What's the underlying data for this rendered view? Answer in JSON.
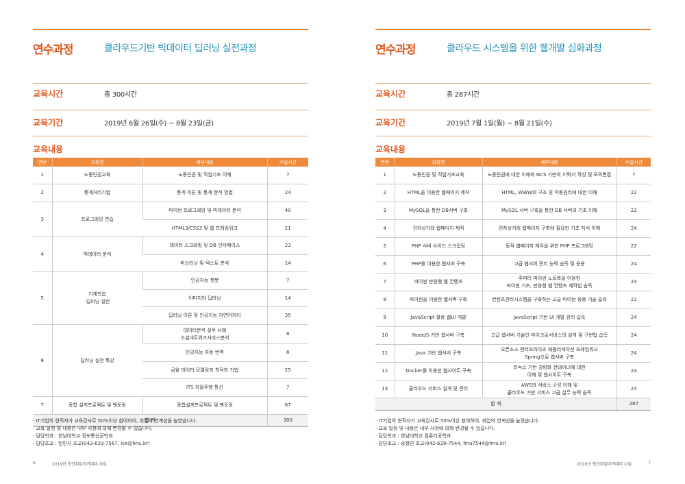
{
  "labels": {
    "course_label": "연수과정",
    "hours_label": "교육시간",
    "period_label": "교육기간",
    "content_label": "교육내용"
  },
  "table_headers": [
    "연번",
    "과목명",
    "세부내용",
    "수업시간"
  ],
  "left": {
    "course_name": "클라우드기반 빅데이터 딥러닝 실전과정",
    "hours": "총 300시간",
    "period": "2019년 6월 26일(수) ~ 8월 23일(금)",
    "groups": [
      {
        "no": "1",
        "subject": "노동인권교육",
        "details": [
          {
            "content": "노동인권 및 직업기초 이해",
            "hours": "7"
          }
        ]
      },
      {
        "no": "2",
        "subject": "통계처리기법",
        "details": [
          {
            "content": "통계 이론 및 통계 분석 방법",
            "hours": "24"
          }
        ]
      },
      {
        "no": "3",
        "subject": "프로그래밍 연습",
        "details": [
          {
            "content": "파이썬 프로그래밍 및 빅데이터 분석",
            "hours": "40"
          },
          {
            "content": "HTML3/CSS3 및 웹 프레임워크",
            "hours": "21"
          }
        ]
      },
      {
        "no": "4",
        "subject": "빅데이터 분석",
        "details": [
          {
            "content": "데이터 스크래핑 및 DB 인터페이스",
            "hours": "23"
          },
          {
            "content": "머신러닝 및 텍스트 분석",
            "hours": "14"
          }
        ]
      },
      {
        "no": "5",
        "subject": "기계학습\n·딥러닝 실전",
        "details": [
          {
            "content": "인공지능 챗봇",
            "hours": "7"
          },
          {
            "content": "이미지와 딥러닝",
            "hours": "14"
          },
          {
            "content": "딥러닝 이론 및 인공지능 자연어처리",
            "hours": "35"
          }
        ]
      },
      {
        "no": "6",
        "subject": "딥러닝 실전 특강",
        "details": [
          {
            "content": "데이터분석 실무 사례\n소셜네트워크서비스분석",
            "hours": "8"
          },
          {
            "content": "인공지능 자동 번역",
            "hours": "8"
          },
          {
            "content": "금융 데이터 모델링과 최적화 기법",
            "hours": "25"
          },
          {
            "content": "ITS 자율주행 통신",
            "hours": "7"
          }
        ]
      },
      {
        "no": "7",
        "subject": "종합 설계프로젝트 및 멘토링",
        "details": [
          {
            "content": "종합설계프로젝트 및 멘토링",
            "hours": "67"
          }
        ]
      }
    ],
    "total_label": "합 계",
    "total": "300",
    "notes": [
      "· IT기업의 현직자가 교육강사로 50%이상 참여하여, 취업의 연계성을 높였습니다.",
      "· 교육 일정 및 내용은 내부 사정에 의해 변경될 수 있습니다.",
      "· 담당학과 : 한남대학교 정보통신공학과",
      "· 담당조교 : 임민지 조교(042-629-7567, ice@hnu.kr)"
    ],
    "page_no": "6",
    "footer_text": "2019년 청년취업아카데미 사업"
  },
  "right": {
    "course_name": "클라우드 시스템을 위한 웹개발 심화과정",
    "hours": "총 287시간",
    "period": "2019년 7월 1일(월) ~ 8월 21일(수)",
    "rows": [
      {
        "no": "1",
        "subject": "노동인권 및 직업기초교육",
        "content": "노동인권에 대한 이해와 NCS 기반의 이력서 작성 및 모의면접",
        "hours": "7"
      },
      {
        "no": "2",
        "subject": "HTML을 이용한 웹페이지 제작",
        "content": "HTML, WWW의 구조 및 작동원리에 대한 이해",
        "hours": "22"
      },
      {
        "no": "3",
        "subject": "MySQL을 통한 DB서버 구축",
        "content": "MySQL 서버 구축을 통한 DB 서버의 기초 이해",
        "hours": "22"
      },
      {
        "no": "4",
        "subject": "전자상거래 웹페이지 제작",
        "content": "전자상거래 웹페이지 구축에 필요한 기초 지식 이해",
        "hours": "24"
      },
      {
        "no": "5",
        "subject": "PHP 서버 사이드 스크립팅",
        "content": "동적 웹페이지 제작을 위한 PHP 프로그래밍",
        "hours": "22"
      },
      {
        "no": "6",
        "subject": "PHP를 이용한 웹서버 구축",
        "content": "고급 웹서버 관리 능력 습득 및 응용",
        "hours": "24"
      },
      {
        "no": "7",
        "subject": "파이썬 반응형 웹 컨텐츠",
        "content": "주피터 파이썬 노트북을 이용한\n파이썬 기초, 반응형 웹 컨텐츠 제작법 습득",
        "hours": "24"
      },
      {
        "no": "8",
        "subject": "파이썬을 이용한 웹서버 구축",
        "content": "컨텐츠관리시스템을 구축하는 고급 파이썬 응용 기술 습득",
        "hours": "22"
      },
      {
        "no": "9",
        "subject": "JavaScript 활용 웹UI 개발",
        "content": "JavaScript 기반 UI 개발 원리 습득",
        "hours": "24"
      },
      {
        "no": "10",
        "subject": "NodeJS 기반 웹서버 구축",
        "content": "고급 웹서버 기술인 마이크로서비스의 설계 및 구현법 습득",
        "hours": "24"
      },
      {
        "no": "11",
        "subject": "Java 기반 웹서버 구축",
        "content": "오픈소스 엔터프라이즈 애플리케이션 프레임워크\nSpring으로 웹서버 구축",
        "hours": "24"
      },
      {
        "no": "12",
        "subject": "Docker를 이용한 웹사이트 구축",
        "content": "리눅스 기반 경량화 컨테이너에 대한\n이해 및 웹사이트 구축",
        "hours": "24"
      },
      {
        "no": "13",
        "subject": "클라우드 서비스 설계 및 관리",
        "content": "AWS의 서비스 구성 이해 및\n클라우드 기반 서비스 고급 실무 능력 습득",
        "hours": "24"
      }
    ],
    "total_label": "합 계",
    "total": "287",
    "notes": [
      "· IT기업의 현직자가 교육강사로 50%이상 참여하여, 취업의 연계성을 높였습니다.",
      "· 교육 일정 및 내용은 내부 사정에 의해 변경될 수 있습니다.",
      "· 담당학과 : 한남대학교 컴퓨터공학과",
      "· 담당조교 : 송정민 조교(042-629-7544, hnu7544@hnu.kr)"
    ],
    "page_no": "7",
    "footer_text": "2019년 청년취업아카데미 사업"
  }
}
